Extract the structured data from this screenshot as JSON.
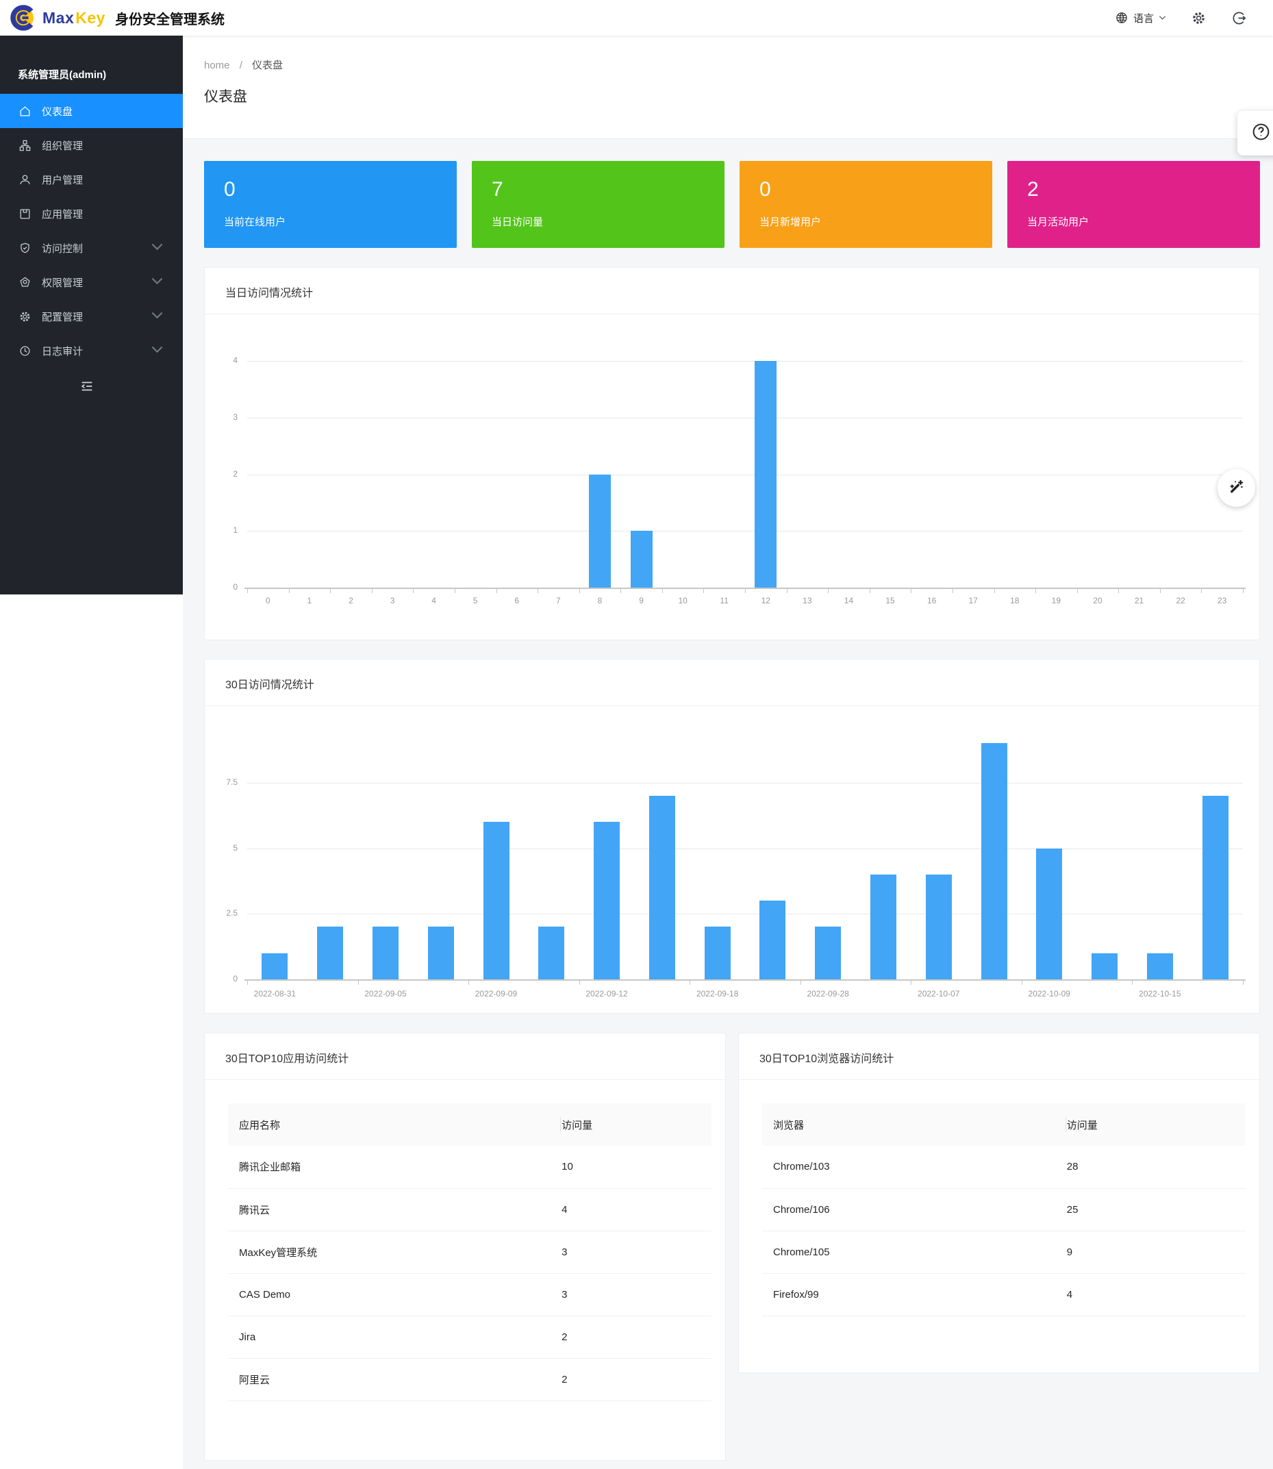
{
  "header": {
    "brand_max": "Max",
    "brand_key": "Key",
    "app_title": "身份安全管理系统",
    "language_label": "语言"
  },
  "sidebar": {
    "admin_label": "系统管理员(admin)",
    "items": [
      {
        "label": "仪表盘",
        "icon": "home-icon",
        "active": true
      },
      {
        "label": "组织管理",
        "icon": "org-icon"
      },
      {
        "label": "用户管理",
        "icon": "user-icon"
      },
      {
        "label": "应用管理",
        "icon": "app-icon"
      },
      {
        "label": "访问控制",
        "icon": "shield-check-icon",
        "expandable": true
      },
      {
        "label": "权限管理",
        "icon": "pentagon-icon",
        "expandable": true
      },
      {
        "label": "配置管理",
        "icon": "gear-icon",
        "expandable": true
      },
      {
        "label": "日志审计",
        "icon": "clock-icon",
        "expandable": true
      }
    ]
  },
  "breadcrumb": {
    "home": "home",
    "sep": "/",
    "current": "仪表盘"
  },
  "page": {
    "title": "仪表盘"
  },
  "stat_cards": [
    {
      "value": "0",
      "label": "当前在线用户",
      "color": "#2196f3"
    },
    {
      "value": "7",
      "label": "当日访问量",
      "color": "#52c41a"
    },
    {
      "value": "0",
      "label": "当月新增用户",
      "color": "#f8a017"
    },
    {
      "value": "2",
      "label": "当月活动用户",
      "color": "#e0218a"
    }
  ],
  "chart_data": [
    {
      "type": "bar",
      "title": "当日访问情况统计",
      "categories": [
        "0",
        "1",
        "2",
        "3",
        "4",
        "5",
        "6",
        "7",
        "8",
        "9",
        "10",
        "11",
        "12",
        "13",
        "14",
        "15",
        "16",
        "17",
        "18",
        "19",
        "20",
        "21",
        "22",
        "23"
      ],
      "values": [
        0,
        0,
        0,
        0,
        0,
        0,
        0,
        0,
        2,
        1,
        0,
        0,
        4,
        0,
        0,
        0,
        0,
        0,
        0,
        0,
        0,
        0,
        0,
        0
      ],
      "color": "#42a5f5",
      "xlabel": "",
      "ylabel": "",
      "ylim": [
        0,
        4
      ],
      "yticks": [
        0,
        1,
        2,
        3,
        4
      ],
      "grid": true,
      "legend": "none"
    },
    {
      "type": "bar",
      "title": "30日访问情况统计",
      "categories": [
        "2022-08-31",
        "",
        "2022-09-05",
        "",
        "2022-09-09",
        "",
        "2022-09-12",
        "",
        "2022-09-18",
        "",
        "2022-09-28",
        "",
        "2022-10-07",
        "",
        "2022-10-09",
        "",
        "2022-10-15",
        ""
      ],
      "values": [
        1,
        2,
        2,
        2,
        6,
        2,
        6,
        7,
        2,
        3,
        2,
        4,
        4,
        9,
        5,
        1,
        1,
        7
      ],
      "color": "#42a5f5",
      "xlabel": "",
      "ylabel": "",
      "ylim": [
        0,
        10
      ],
      "yticks": [
        0,
        2.5,
        5,
        7.5
      ],
      "grid": true,
      "legend": "none"
    }
  ],
  "tables": [
    {
      "title": "30日TOP10应用访问统计",
      "headers": [
        "应用名称",
        "访问量"
      ],
      "rows": [
        [
          "腾讯企业邮箱",
          "10"
        ],
        [
          "腾讯云",
          "4"
        ],
        [
          "MaxKey管理系统",
          "3"
        ],
        [
          "CAS Demo",
          "3"
        ],
        [
          "Jira",
          "2"
        ],
        [
          "阿里云",
          "2"
        ]
      ]
    },
    {
      "title": "30日TOP10浏览器访问统计",
      "headers": [
        "浏览器",
        "访问量"
      ],
      "rows": [
        [
          "Chrome/103",
          "28"
        ],
        [
          "Chrome/106",
          "25"
        ],
        [
          "Chrome/105",
          "9"
        ],
        [
          "Firefox/99",
          "4"
        ]
      ]
    }
  ],
  "floating_buttons": [
    {
      "icon": "circle-question-icon"
    },
    {
      "icon": "magic-wand-icon"
    }
  ]
}
